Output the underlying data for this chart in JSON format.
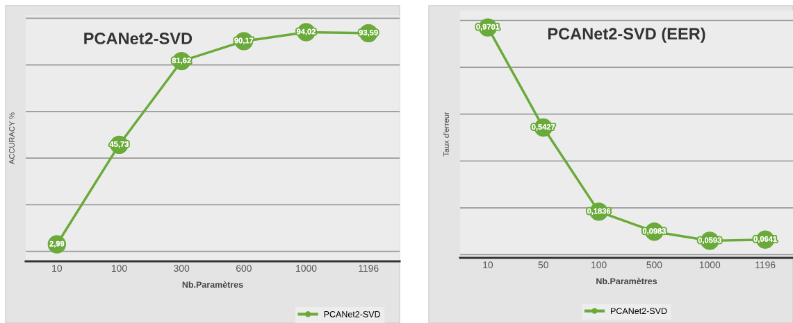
{
  "chart_data": [
    {
      "type": "line",
      "title": "PCANet2-SVD",
      "xlabel": "Nb.Paramètres",
      "ylabel": "ACCURACY %",
      "categories": [
        "10",
        "100",
        "300",
        "600",
        "1000",
        "1196"
      ],
      "series": [
        {
          "name": "PCANet2-SVD",
          "color": "#6aaa3a",
          "values": [
            2.99,
            45.73,
            81.62,
            90.17,
            94.02,
            93.59
          ],
          "value_labels": [
            "2,99",
            "45,73",
            "81,62",
            "90,17",
            "94,02",
            "93,59"
          ]
        }
      ],
      "tick_labels": "x",
      "grid": "y",
      "legend": "bottom right",
      "marker": "circle",
      "line_style": "solid"
    },
    {
      "type": "line",
      "title": "PCANet2-SVD (EER)",
      "xlabel": "Nb.Paramètres",
      "ylabel": "Taux d'erreur",
      "categories": [
        "10",
        "50",
        "100",
        "500",
        "1000",
        "1196"
      ],
      "series": [
        {
          "name": "PCANet2-SVD",
          "color": "#6aaa3a",
          "values": [
            0.9701,
            0.5427,
            0.1836,
            0.0983,
            0.0593,
            0.0641
          ],
          "value_labels": [
            "0,9701",
            "0,5427",
            "0,1836",
            "0,0983",
            "0,0593",
            "0,0641"
          ]
        }
      ],
      "tick_labels": "x",
      "grid": "y",
      "legend": "bottom",
      "marker": "circle",
      "line_style": "solid"
    }
  ]
}
